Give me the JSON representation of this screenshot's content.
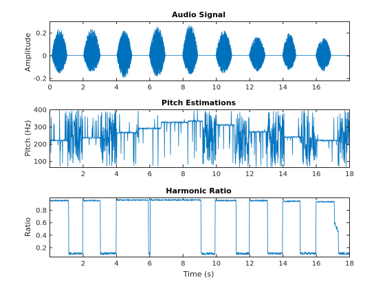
{
  "figure_background": "#ffffff",
  "line_color": "#0072BD",
  "chart_data": [
    {
      "id": "audio",
      "type": "line",
      "title": "Audio Signal",
      "xlabel": "",
      "ylabel": "Amplitude",
      "xlim": [
        0,
        18
      ],
      "ylim": [
        -0.22,
        0.3
      ],
      "xticks": [
        0,
        2,
        4,
        6,
        8,
        10,
        12,
        14,
        16
      ],
      "xtick_labels": [
        "0",
        "2",
        "4",
        "6",
        "8",
        "10",
        "12",
        "14",
        "16"
      ],
      "yticks": [
        -0.2,
        0,
        0.2
      ],
      "ytick_labels": [
        "-0.2",
        "0",
        "0.2"
      ],
      "grid": false,
      "signal_bursts": [
        {
          "start": 0.15,
          "end": 1.05,
          "peak_pos": 0.24,
          "peak_neg": -0.16
        },
        {
          "start": 2.05,
          "end": 3.05,
          "peak_pos": 0.24,
          "peak_neg": -0.15
        },
        {
          "start": 4.05,
          "end": 4.95,
          "peak_pos": 0.22,
          "peak_neg": -0.2
        },
        {
          "start": 6.0,
          "end": 6.95,
          "peak_pos": 0.26,
          "peak_neg": -0.19
        },
        {
          "start": 8.0,
          "end": 8.9,
          "peak_pos": 0.28,
          "peak_neg": -0.17
        },
        {
          "start": 10.0,
          "end": 10.95,
          "peak_pos": 0.22,
          "peak_neg": -0.16
        },
        {
          "start": 12.0,
          "end": 12.95,
          "peak_pos": 0.17,
          "peak_neg": -0.14
        },
        {
          "start": 14.0,
          "end": 14.8,
          "peak_pos": 0.2,
          "peak_neg": -0.13
        },
        {
          "start": 16.0,
          "end": 16.9,
          "peak_pos": 0.16,
          "peak_neg": -0.14
        }
      ]
    },
    {
      "id": "pitch",
      "type": "line",
      "title": "Pitch Estimations",
      "xlabel": "",
      "ylabel": "Pitch (Hz)",
      "xlim": [
        0,
        18
      ],
      "ylim": [
        65,
        400
      ],
      "xticks": [
        2,
        4,
        6,
        8,
        10,
        12,
        14,
        16,
        18
      ],
      "xtick_labels": [
        "2",
        "4",
        "6",
        "8",
        "10",
        "12",
        "14",
        "16",
        "18"
      ],
      "yticks": [
        100,
        200,
        300,
        400
      ],
      "ytick_labels": [
        "100",
        "200",
        "300",
        "400"
      ],
      "grid": false,
      "voiced_segments": [
        {
          "start": 0.0,
          "end": 1.1,
          "pitch": 220
        },
        {
          "start": 2.0,
          "end": 3.05,
          "pitch": 235
        },
        {
          "start": 4.05,
          "end": 5.3,
          "pitch": 265
        },
        {
          "start": 5.3,
          "end": 6.7,
          "pitch": 290
        },
        {
          "start": 6.7,
          "end": 8.3,
          "pitch": 325
        },
        {
          "start": 8.3,
          "end": 9.2,
          "pitch": 332
        },
        {
          "start": 10.0,
          "end": 11.1,
          "pitch": 310
        },
        {
          "start": 12.0,
          "end": 13.1,
          "pitch": 270
        },
        {
          "start": 14.1,
          "end": 15.1,
          "pitch": 240
        },
        {
          "start": 16.0,
          "end": 17.3,
          "pitch": 220
        }
      ]
    },
    {
      "id": "harmonic",
      "type": "line",
      "title": "Harmonic Ratio",
      "xlabel": "Time (s)",
      "ylabel": "Ratio",
      "xlim": [
        0,
        18
      ],
      "ylim": [
        0.05,
        1.0
      ],
      "xticks": [
        2,
        4,
        6,
        8,
        10,
        12,
        14,
        16,
        18
      ],
      "xtick_labels": [
        "2",
        "4",
        "6",
        "8",
        "10",
        "12",
        "14",
        "16",
        "18"
      ],
      "yticks": [
        0.2,
        0.4,
        0.6,
        0.8
      ],
      "ytick_labels": [
        "0.2",
        "0.4",
        "0.6",
        "0.8"
      ],
      "grid": false,
      "high_segments": [
        {
          "start": 0.0,
          "end": 1.15,
          "value": 0.95
        },
        {
          "start": 2.0,
          "end": 3.05,
          "value": 0.95
        },
        {
          "start": 4.0,
          "end": 5.95,
          "value": 0.96
        },
        {
          "start": 6.05,
          "end": 9.1,
          "value": 0.96
        },
        {
          "start": 9.95,
          "end": 11.2,
          "value": 0.95
        },
        {
          "start": 12.0,
          "end": 13.1,
          "value": 0.95
        },
        {
          "start": 14.0,
          "end": 15.05,
          "value": 0.94
        },
        {
          "start": 16.0,
          "end": 17.35,
          "value": 0.93
        }
      ],
      "low_value": 0.1
    }
  ]
}
